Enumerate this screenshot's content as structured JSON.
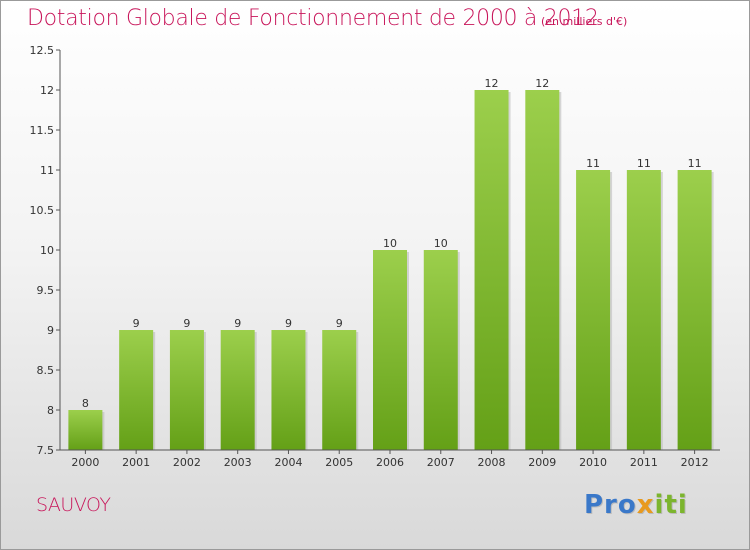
{
  "header": {
    "title": "Dotation Globale de Fonctionnement de 2000 à 2012",
    "unit_note": "(en milliers d'€)"
  },
  "commune": "SAUVOY",
  "logo": {
    "text": "Proxiti"
  },
  "colors": {
    "title": "#c8155a",
    "bar_top": "#9ccf4c",
    "bar_bottom": "#64a017"
  },
  "chart_data": {
    "type": "bar",
    "title": "Dotation Globale de Fonctionnement de 2000 à 2012",
    "subtitle": "(en milliers d'€)",
    "categories": [
      "2000",
      "2001",
      "2002",
      "2003",
      "2004",
      "2005",
      "2006",
      "2007",
      "2008",
      "2009",
      "2010",
      "2011",
      "2012"
    ],
    "values": [
      8,
      9,
      9,
      9,
      9,
      9,
      10,
      10,
      12,
      12,
      11,
      11,
      11
    ],
    "data_labels": [
      "8",
      "9",
      "9",
      "9",
      "9",
      "9",
      "10",
      "10",
      "12",
      "12",
      "11",
      "11",
      "11"
    ],
    "ylim": [
      7.5,
      12.5
    ],
    "yticks": [
      7.5,
      8,
      8.5,
      9,
      9.5,
      10,
      10.5,
      11,
      11.5,
      12,
      12.5
    ],
    "ytick_labels": [
      "7.5",
      "8",
      "8.5",
      "9",
      "9.5",
      "10",
      "10.5",
      "11",
      "11.5",
      "12",
      "12.5"
    ],
    "grid": false,
    "legend": "none"
  }
}
